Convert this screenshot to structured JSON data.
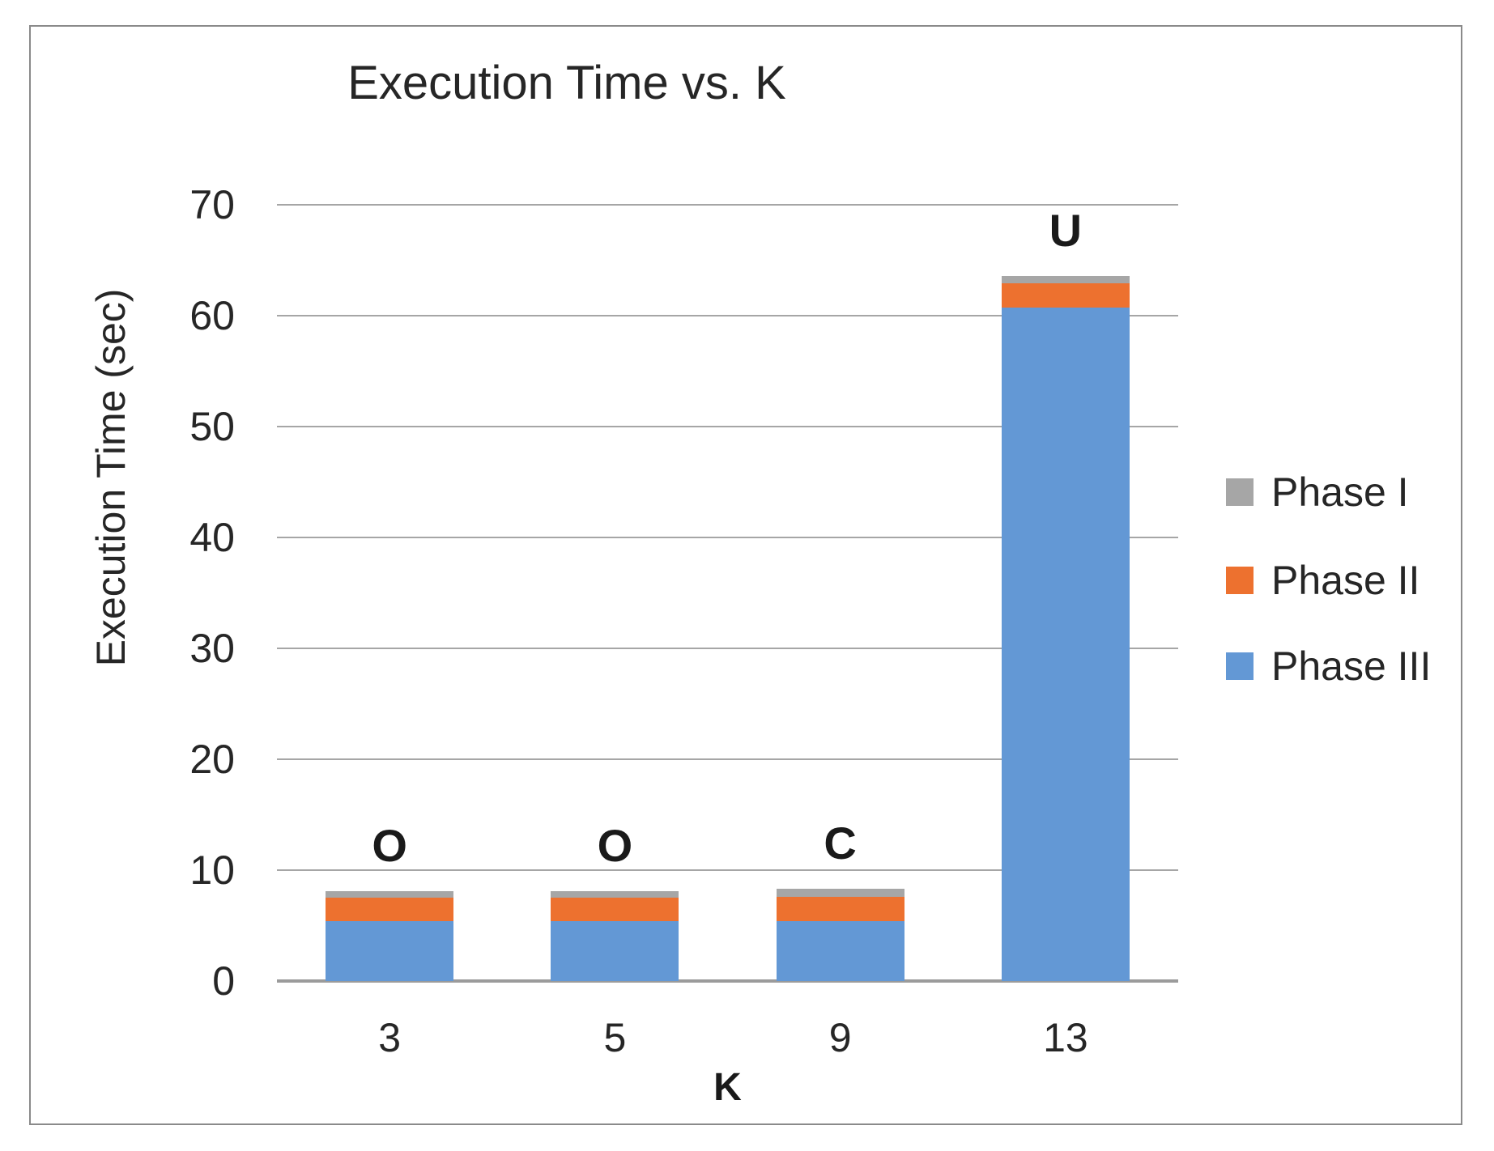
{
  "window": {
    "background": "#FFFFFF",
    "frame_border_color": "#8A8A8A"
  },
  "chart_data": {
    "type": "bar",
    "stacked": true,
    "title": "Execution Time vs. K",
    "xlabel": "K",
    "ylabel": "Execution Time (sec)",
    "categories": [
      "3",
      "5",
      "9",
      "13"
    ],
    "series": [
      {
        "name": "Phase I",
        "color": "#A6A6A6",
        "values": [
          0.6,
          0.6,
          0.7,
          0.7
        ]
      },
      {
        "name": "Phase II",
        "color": "#ED712F",
        "values": [
          2.1,
          2.1,
          2.2,
          2.2
        ]
      },
      {
        "name": "Phase III",
        "color": "#6398D5",
        "values": [
          5.4,
          5.4,
          5.4,
          60.7
        ]
      }
    ],
    "stack_order_top_to_bottom": [
      "Phase I",
      "Phase II",
      "Phase III"
    ],
    "bar_annotations": [
      "O",
      "O",
      "C",
      "U"
    ],
    "ylim": [
      0,
      70
    ],
    "yticks": [
      0,
      10,
      20,
      30,
      40,
      50,
      60,
      70
    ],
    "gridlines": true,
    "gridline_color": "#A6A6A6",
    "axis_line_color": "#9B9B9B",
    "text_color": "#262626",
    "legend": {
      "position": "right",
      "entries": [
        "Phase I",
        "Phase II",
        "Phase III"
      ]
    }
  }
}
